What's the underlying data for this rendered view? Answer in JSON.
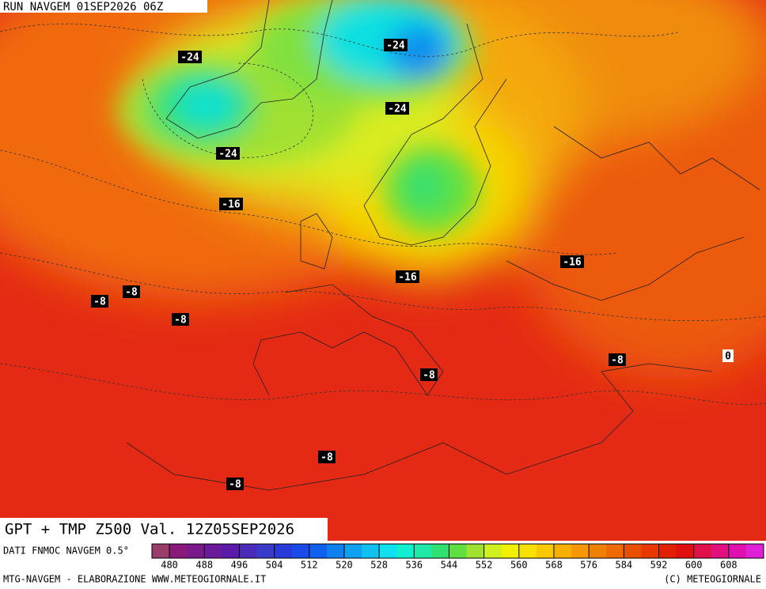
{
  "header": {
    "run": "RUN NAVGEM 01SEP2026 06Z"
  },
  "map": {
    "title": "GPT + TMP Z500 Val. 12Z05SEP2026",
    "contour_labels": [
      -24,
      -24,
      -24,
      -24,
      -16,
      -16,
      -16,
      -8,
      -8,
      -8,
      -8,
      -8,
      0,
      -8,
      -8
    ]
  },
  "colorbar": {
    "caption": "DATI FNMOC NAVGEM 0.5°",
    "lim": [
      476,
      616
    ],
    "ticks": [
      480,
      488,
      496,
      504,
      512,
      520,
      528,
      536,
      544,
      552,
      560,
      568,
      576,
      584,
      592,
      600,
      608
    ],
    "colors": [
      "#9a3d6a",
      "#8a1a7a",
      "#7a1a8a",
      "#6a1a9a",
      "#5a1aaa",
      "#4a2ab8",
      "#3a3ac8",
      "#2a3ad8",
      "#1a4ae8",
      "#1060f0",
      "#1080f0",
      "#10a0f0",
      "#10c0f0",
      "#10e0f0",
      "#10f0d0",
      "#20e8a8",
      "#30e070",
      "#60e040",
      "#a0e030",
      "#d0f020",
      "#f0f000",
      "#f8e000",
      "#f8c800",
      "#f8b000",
      "#f89800",
      "#f08000",
      "#f06800",
      "#e85000",
      "#e83800",
      "#e02000",
      "#e01010",
      "#e0104a",
      "#e01080",
      "#e010b0",
      "#e020d8"
    ]
  },
  "footer": {
    "left": "MTG-NAVGEM - ELABORAZIONE WWW.METEOGIORNALE.IT",
    "right": "(C) METEOGIORNALE"
  }
}
